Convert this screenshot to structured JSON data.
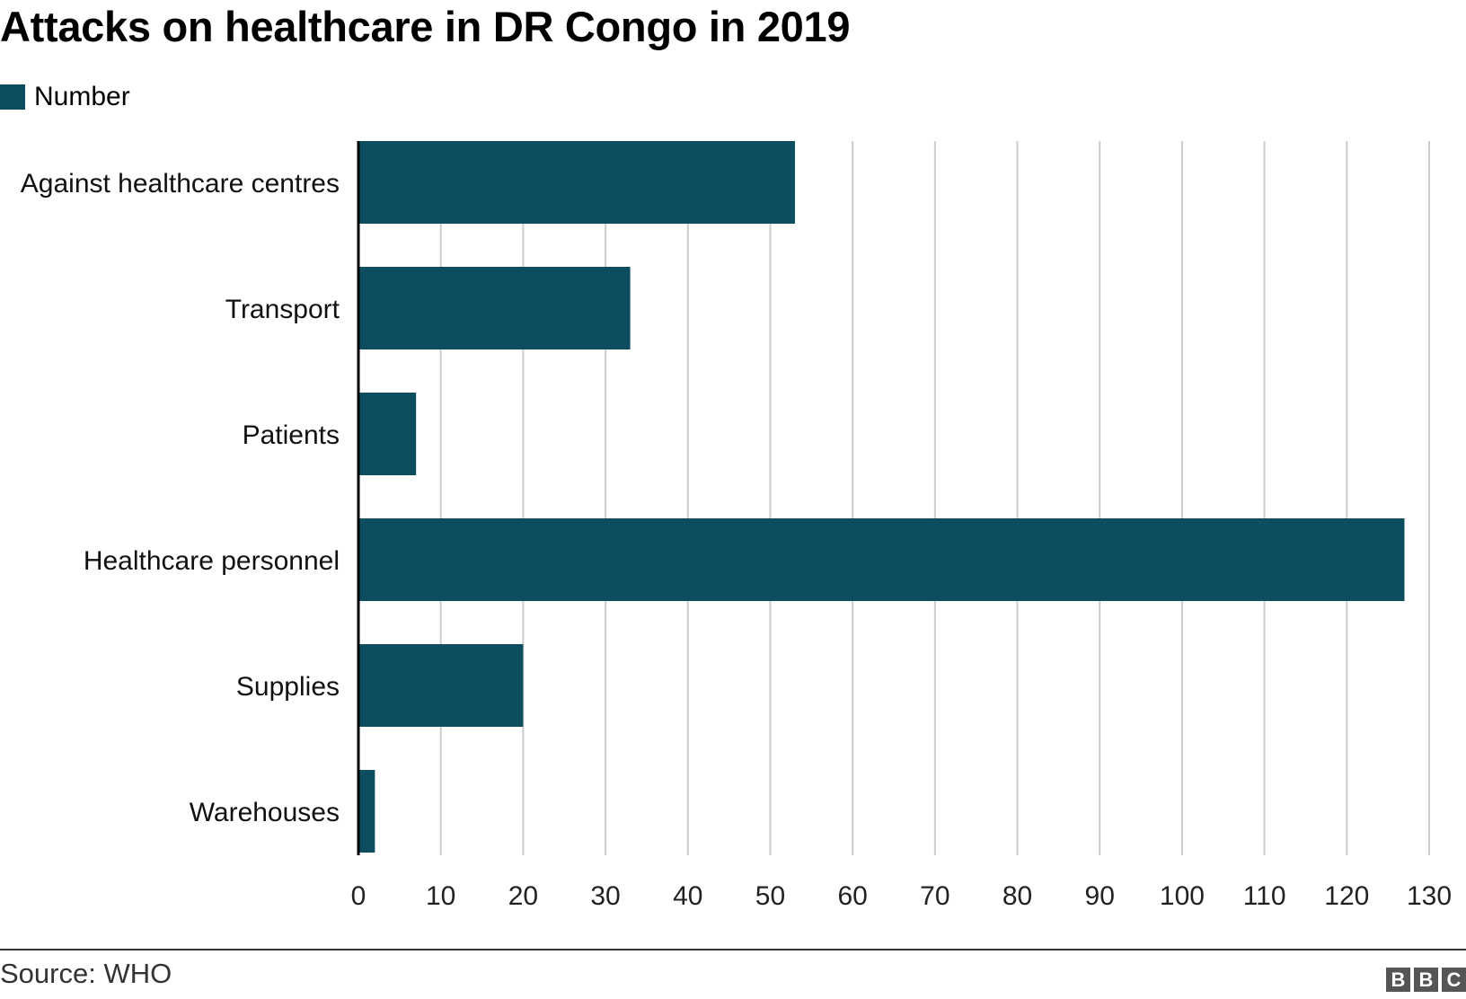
{
  "chart_data": {
    "type": "bar",
    "orientation": "horizontal",
    "title": "Attacks on healthcare in DR Congo in 2019",
    "categories": [
      "Against healthcare centres",
      "Transport",
      "Patients",
      "Healthcare personnel",
      "Supplies",
      "Warehouses"
    ],
    "series": [
      {
        "name": "Number",
        "values": [
          53,
          33,
          7,
          127,
          20,
          2
        ]
      }
    ],
    "xlim": [
      0,
      130
    ],
    "xticks": [
      0,
      10,
      20,
      30,
      40,
      50,
      60,
      70,
      80,
      90,
      100,
      110,
      120,
      130
    ],
    "xlabel": "",
    "ylabel": "",
    "grid": true,
    "legend_position": "top-left",
    "colors": {
      "bar": "#0c4e60",
      "grid": "#cccccc",
      "axis": "#000000"
    }
  },
  "footer": {
    "source": "Source: WHO",
    "logo_letters": [
      "B",
      "B",
      "C"
    ]
  }
}
